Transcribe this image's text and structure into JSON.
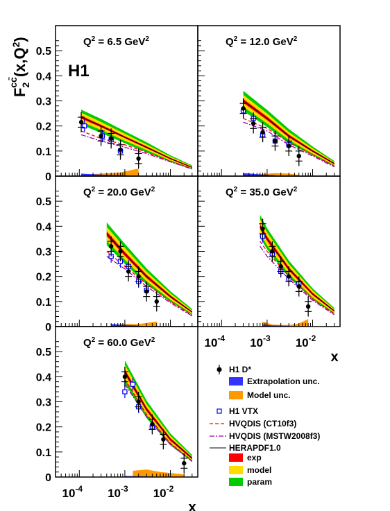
{
  "chart_data": {
    "type": "scatter",
    "experiment": "H1",
    "ylabel": "F_2^{cc̄}(x,Q²)",
    "ylabel_parts": {
      "F": "F",
      "sub": "2",
      "sup": "cc̄",
      "args": "(x,Q",
      "q2sup": "2",
      "close": ")"
    },
    "xlabel": "x",
    "xscale": "log",
    "xlim": [
      3e-05,
      0.04
    ],
    "ylim": [
      0,
      0.6
    ],
    "yticks": [
      "0",
      "0.1",
      "0.2",
      "0.3",
      "0.4",
      "0.5"
    ],
    "xticks": [
      {
        "base": "10",
        "exp": "-4"
      },
      {
        "base": "10",
        "exp": "-3"
      },
      {
        "base": "10",
        "exp": "-2"
      }
    ],
    "panels": [
      {
        "title": "Q",
        "title_sup": "2",
        "title_value": " = 6.5 GeV",
        "title_unit_sup": "2",
        "h1_dstar": [
          [
            0.00011,
            0.215
          ],
          [
            0.0003,
            0.16
          ],
          [
            0.0005,
            0.15
          ],
          [
            0.0008,
            0.105
          ],
          [
            0.002,
            0.07
          ]
        ],
        "h1_vtx": [
          [
            0.00013,
            0.2
          ],
          [
            0.00032,
            0.16
          ],
          [
            0.0005,
            0.145
          ],
          [
            0.0008,
            0.1
          ]
        ],
        "band_x": [
          0.00011,
          0.0003,
          0.001,
          0.003,
          0.01,
          0.03
        ],
        "herapdf": [
          0.235,
          0.2,
          0.155,
          0.115,
          0.07,
          0.035
        ],
        "param_hw": [
          0.03,
          0.028,
          0.024,
          0.02,
          0.013,
          0.008
        ],
        "model_hw": [
          0.018,
          0.016,
          0.014,
          0.011,
          0.008,
          0.005
        ],
        "exp_hw": [
          0.006,
          0.005,
          0.004,
          0.004,
          0.003,
          0.002
        ],
        "hvqdis_ct10": [
          0.18,
          0.15,
          0.125,
          0.095,
          0.06,
          0.03
        ],
        "hvqdis_mstw": [
          0.165,
          0.14,
          0.115,
          0.09,
          0.057,
          0.028
        ],
        "extrap_unc": [
          [
            0.00011,
            0.01
          ],
          [
            0.0003,
            0.006
          ],
          [
            0.0008,
            0.004
          ],
          [
            0.0015,
            0.002
          ]
        ],
        "model_unc": [
          [
            0.00011,
            0.005
          ],
          [
            0.0003,
            0.01
          ],
          [
            0.0008,
            0.015
          ],
          [
            0.002,
            0.03
          ]
        ]
      },
      {
        "title": "Q",
        "title_sup": "2",
        "title_value": " = 12.0 GeV",
        "title_unit_sup": "2",
        "h1_dstar": [
          [
            0.0003,
            0.27
          ],
          [
            0.0005,
            0.21
          ],
          [
            0.0008,
            0.175
          ],
          [
            0.0015,
            0.14
          ],
          [
            0.003,
            0.12
          ],
          [
            0.005,
            0.08
          ]
        ],
        "h1_vtx": [
          [
            0.0003,
            0.26
          ],
          [
            0.0005,
            0.23
          ],
          [
            0.0008,
            0.165
          ],
          [
            0.0015,
            0.14
          ],
          [
            0.003,
            0.125
          ]
        ],
        "band_x": [
          0.0003,
          0.001,
          0.003,
          0.01,
          0.03
        ],
        "herapdf": [
          0.3,
          0.23,
          0.16,
          0.1,
          0.05
        ],
        "param_hw": [
          0.04,
          0.034,
          0.028,
          0.018,
          0.01
        ],
        "model_hw": [
          0.024,
          0.02,
          0.016,
          0.011,
          0.006
        ],
        "exp_hw": [
          0.008,
          0.007,
          0.006,
          0.004,
          0.003
        ],
        "hvqdis_ct10": [
          0.23,
          0.19,
          0.135,
          0.085,
          0.04
        ],
        "hvqdis_mstw": [
          0.215,
          0.18,
          0.125,
          0.08,
          0.037
        ],
        "extrap_unc": [
          [
            0.0003,
            0.012
          ],
          [
            0.0008,
            0.006
          ],
          [
            0.0015,
            0.004
          ]
        ],
        "model_unc": [
          [
            0.0003,
            0.004
          ],
          [
            0.0008,
            0.008
          ],
          [
            0.0015,
            0.012
          ],
          [
            0.003,
            0.01
          ],
          [
            0.005,
            0.005
          ]
        ]
      },
      {
        "title": "Q",
        "title_sup": "2",
        "title_value": " = 20.0 GeV",
        "title_unit_sup": "2",
        "h1_dstar": [
          [
            0.0005,
            0.32
          ],
          [
            0.0008,
            0.3
          ],
          [
            0.0012,
            0.22
          ],
          [
            0.002,
            0.2
          ],
          [
            0.003,
            0.14
          ],
          [
            0.005,
            0.1
          ]
        ],
        "h1_vtx": [
          [
            0.0005,
            0.28
          ],
          [
            0.0008,
            0.26
          ],
          [
            0.0012,
            0.24
          ],
          [
            0.002,
            0.18
          ],
          [
            0.003,
            0.145
          ]
        ],
        "band_x": [
          0.0004,
          0.001,
          0.003,
          0.01,
          0.03
        ],
        "herapdf": [
          0.37,
          0.29,
          0.2,
          0.12,
          0.058
        ],
        "param_hw": [
          0.045,
          0.04,
          0.032,
          0.021,
          0.012
        ],
        "model_hw": [
          0.028,
          0.024,
          0.019,
          0.013,
          0.007
        ],
        "exp_hw": [
          0.01,
          0.008,
          0.007,
          0.005,
          0.003
        ],
        "hvqdis_ct10": [
          0.3,
          0.24,
          0.17,
          0.1,
          0.045
        ],
        "hvqdis_mstw": [
          0.28,
          0.23,
          0.16,
          0.095,
          0.042
        ],
        "extrap_unc": [
          [
            0.0005,
            0.01
          ],
          [
            0.001,
            0.007
          ],
          [
            0.002,
            0.004
          ]
        ],
        "model_unc": [
          [
            0.0005,
            0.005
          ],
          [
            0.001,
            0.01
          ],
          [
            0.002,
            0.01
          ],
          [
            0.005,
            0.02
          ]
        ]
      },
      {
        "title": "Q",
        "title_sup": "2",
        "title_value": " = 35.0 GeV",
        "title_unit_sup": "2",
        "h1_dstar": [
          [
            0.0008,
            0.39
          ],
          [
            0.0013,
            0.3
          ],
          [
            0.002,
            0.24
          ],
          [
            0.003,
            0.2
          ],
          [
            0.005,
            0.16
          ],
          [
            0.008,
            0.08
          ]
        ],
        "h1_vtx": [
          [
            0.0008,
            0.36
          ],
          [
            0.0013,
            0.29
          ],
          [
            0.002,
            0.22
          ],
          [
            0.003,
            0.19
          ],
          [
            0.005,
            0.17
          ]
        ],
        "band_x": [
          0.0007,
          0.001,
          0.003,
          0.01,
          0.03
        ],
        "herapdf": [
          0.4,
          0.35,
          0.23,
          0.13,
          0.062
        ],
        "param_hw": [
          0.045,
          0.042,
          0.033,
          0.022,
          0.012
        ],
        "model_hw": [
          0.028,
          0.026,
          0.02,
          0.014,
          0.007
        ],
        "exp_hw": [
          0.01,
          0.009,
          0.007,
          0.005,
          0.003
        ],
        "hvqdis_ct10": [
          0.34,
          0.3,
          0.2,
          0.11,
          0.05
        ],
        "hvqdis_mstw": [
          0.32,
          0.28,
          0.19,
          0.105,
          0.047
        ],
        "extrap_unc": [
          [
            0.0008,
            0.008
          ],
          [
            0.0013,
            0.005
          ],
          [
            0.003,
            0.003
          ]
        ],
        "model_unc": [
          [
            0.0008,
            0.02
          ],
          [
            0.0013,
            0.008
          ],
          [
            0.003,
            0.006
          ],
          [
            0.005,
            0.012
          ],
          [
            0.008,
            0.03
          ]
        ]
      },
      {
        "title": "Q",
        "title_sup": "2",
        "title_value": " = 60.0 GeV",
        "title_unit_sup": "2",
        "h1_dstar": [
          [
            0.001,
            0.4
          ],
          [
            0.002,
            0.3
          ],
          [
            0.004,
            0.21
          ],
          [
            0.007,
            0.15
          ],
          [
            0.02,
            0.055
          ]
        ],
        "h1_vtx": [
          [
            0.001,
            0.34
          ],
          [
            0.0015,
            0.37
          ],
          [
            0.002,
            0.28
          ],
          [
            0.004,
            0.2
          ]
        ],
        "band_x": [
          0.001,
          0.003,
          0.01,
          0.03
        ],
        "herapdf": [
          0.42,
          0.27,
          0.15,
          0.075
        ],
        "param_hw": [
          0.045,
          0.035,
          0.024,
          0.013
        ],
        "model_hw": [
          0.028,
          0.021,
          0.014,
          0.008
        ],
        "exp_hw": [
          0.01,
          0.008,
          0.006,
          0.004
        ],
        "hvqdis_ct10": [
          0.39,
          0.25,
          0.135,
          0.065
        ],
        "hvqdis_mstw": [
          0.37,
          0.24,
          0.13,
          0.062
        ],
        "extrap_unc": [
          [
            0.001,
            0.004
          ],
          [
            0.002,
            0.003
          ],
          [
            0.004,
            0.002
          ]
        ],
        "model_unc": [
          [
            0.0015,
            0.025
          ],
          [
            0.003,
            0.03
          ],
          [
            0.006,
            0.02
          ],
          [
            0.012,
            0.015
          ],
          [
            0.02,
            0.01
          ]
        ]
      }
    ],
    "legend": {
      "h1_dstar": "H1 D*",
      "extrap": "Extrapolation unc.",
      "model_unc": "Model unc.",
      "h1_vtx": "H1 VTX",
      "hvqdis_ct10": "HVQDIS (CT10f3)",
      "hvqdis_mstw": "HVQDIS (MSTW2008f3)",
      "herapdf": "HERAPDF1.0",
      "exp": "exp",
      "model": "model",
      "param": "param"
    },
    "colors": {
      "param": "#00cc00",
      "model": "#ffdd00",
      "exp": "#ff0000",
      "extrap": "#3333ff",
      "model_unc": "#ff9900",
      "hvqdis_ct10": "#ff0000",
      "hvqdis_mstw": "#9900aa",
      "herapdf": "#000000",
      "dstar": "#000000",
      "vtx": "#0000ff"
    }
  }
}
